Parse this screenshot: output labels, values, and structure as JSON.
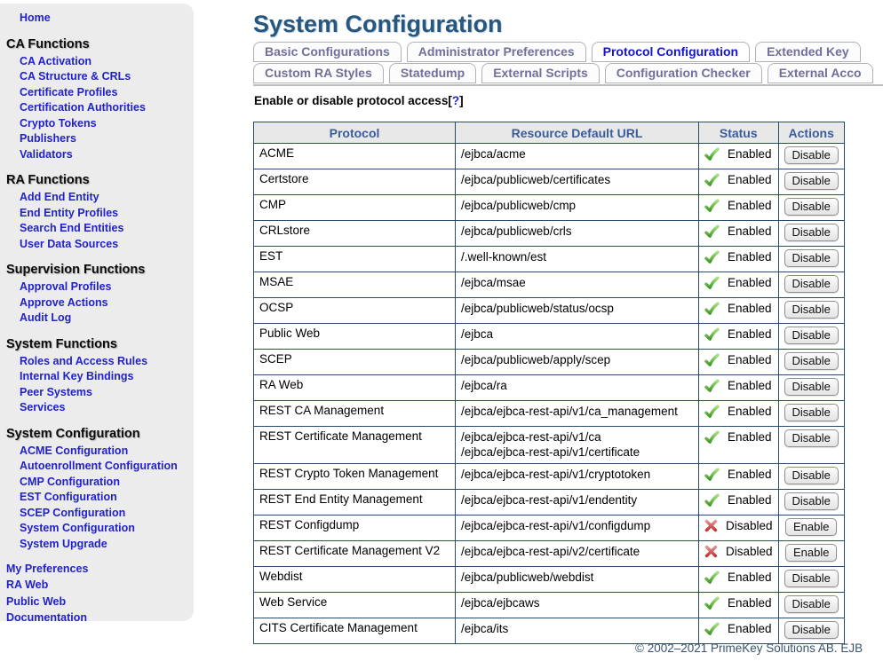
{
  "colors": {
    "link_blue": "#2121ce",
    "title_blue": "#27567f",
    "active_tab_blue": "#1515cd",
    "inactive_tab_gray": "#70709a",
    "table_border": "#2a4a6e",
    "header_bg": "#e8e8e8",
    "sidebar_bg": "#ececec",
    "enabled_green": "#3f9b25",
    "disabled_red": "#c03434"
  },
  "sidebar": {
    "home": {
      "label": "Home"
    },
    "groups": [
      {
        "title": "CA Functions",
        "items": [
          "CA Activation",
          "CA Structure & CRLs",
          "Certificate Profiles",
          "Certification Authorities",
          "Crypto Tokens",
          "Publishers",
          "Validators"
        ]
      },
      {
        "title": "RA Functions",
        "items": [
          "Add End Entity",
          "End Entity Profiles",
          "Search End Entities",
          "User Data Sources"
        ]
      },
      {
        "title": "Supervision Functions",
        "items": [
          "Approval Profiles",
          "Approve Actions",
          "Audit Log"
        ]
      },
      {
        "title": "System Functions",
        "items": [
          "Roles and Access Rules",
          "Internal Key Bindings",
          "Peer Systems",
          "Services"
        ]
      },
      {
        "title": "System Configuration",
        "items": [
          "ACME Configuration",
          "Autoenrollment Configuration",
          "CMP Configuration",
          "EST Configuration",
          "SCEP Configuration",
          "System Configuration",
          "System Upgrade"
        ]
      }
    ],
    "bottom_links": [
      "My Preferences",
      "RA Web",
      "Public Web",
      "Documentation"
    ]
  },
  "header": {
    "title": "System Configuration"
  },
  "tabs": {
    "row1": [
      {
        "label": "Basic Configurations",
        "active": false
      },
      {
        "label": "Administrator Preferences",
        "active": false
      },
      {
        "label": "Protocol Configuration",
        "active": true
      },
      {
        "label": "Extended Key",
        "active": false
      }
    ],
    "row2": [
      {
        "label": "Custom RA Styles",
        "active": false
      },
      {
        "label": "Statedump",
        "active": false
      },
      {
        "label": "External Scripts",
        "active": false
      },
      {
        "label": "Configuration Checker",
        "active": false
      },
      {
        "label": "External Acco",
        "active": false
      }
    ]
  },
  "help": {
    "text": "Enable or disable protocol access",
    "bracket_open": "[",
    "mark": "?",
    "bracket_close": "]"
  },
  "table": {
    "columns": [
      "Protocol",
      "Resource Default URL",
      "Status",
      "Actions"
    ],
    "rows": [
      {
        "protocol": "ACME",
        "urls": [
          "/ejbca/acme"
        ],
        "enabled": true,
        "status": "Enabled",
        "status_icon": "enabled-check-icon",
        "action": "Disable"
      },
      {
        "protocol": "Certstore",
        "urls": [
          "/ejbca/publicweb/certificates"
        ],
        "enabled": true,
        "status": "Enabled",
        "status_icon": "enabled-check-icon",
        "action": "Disable"
      },
      {
        "protocol": "CMP",
        "urls": [
          "/ejbca/publicweb/cmp"
        ],
        "enabled": true,
        "status": "Enabled",
        "status_icon": "enabled-check-icon",
        "action": "Disable"
      },
      {
        "protocol": "CRLstore",
        "urls": [
          "/ejbca/publicweb/crls"
        ],
        "enabled": true,
        "status": "Enabled",
        "status_icon": "enabled-check-icon",
        "action": "Disable"
      },
      {
        "protocol": "EST",
        "urls": [
          "/.well-known/est"
        ],
        "enabled": true,
        "status": "Enabled",
        "status_icon": "enabled-check-icon",
        "action": "Disable"
      },
      {
        "protocol": "MSAE",
        "urls": [
          "/ejbca/msae"
        ],
        "enabled": true,
        "status": "Enabled",
        "status_icon": "enabled-check-icon",
        "action": "Disable"
      },
      {
        "protocol": "OCSP",
        "urls": [
          "/ejbca/publicweb/status/ocsp"
        ],
        "enabled": true,
        "status": "Enabled",
        "status_icon": "enabled-check-icon",
        "action": "Disable"
      },
      {
        "protocol": "Public Web",
        "urls": [
          "/ejbca"
        ],
        "enabled": true,
        "status": "Enabled",
        "status_icon": "enabled-check-icon",
        "action": "Disable"
      },
      {
        "protocol": "SCEP",
        "urls": [
          "/ejbca/publicweb/apply/scep"
        ],
        "enabled": true,
        "status": "Enabled",
        "status_icon": "enabled-check-icon",
        "action": "Disable"
      },
      {
        "protocol": "RA Web",
        "urls": [
          "/ejbca/ra"
        ],
        "enabled": true,
        "status": "Enabled",
        "status_icon": "enabled-check-icon",
        "action": "Disable"
      },
      {
        "protocol": "REST CA Management",
        "urls": [
          "/ejbca/ejbca-rest-api/v1/ca_management"
        ],
        "enabled": true,
        "status": "Enabled",
        "status_icon": "enabled-check-icon",
        "action": "Disable"
      },
      {
        "protocol": "REST Certificate Management",
        "urls": [
          "/ejbca/ejbca-rest-api/v1/ca",
          "/ejbca/ejbca-rest-api/v1/certificate"
        ],
        "enabled": true,
        "status": "Enabled",
        "status_icon": "enabled-check-icon",
        "action": "Disable"
      },
      {
        "protocol": "REST Crypto Token Management",
        "urls": [
          "/ejbca/ejbca-rest-api/v1/cryptotoken"
        ],
        "enabled": true,
        "status": "Enabled",
        "status_icon": "enabled-check-icon",
        "action": "Disable"
      },
      {
        "protocol": "REST End Entity Management",
        "urls": [
          "/ejbca/ejbca-rest-api/v1/endentity"
        ],
        "enabled": true,
        "status": "Enabled",
        "status_icon": "enabled-check-icon",
        "action": "Disable"
      },
      {
        "protocol": "REST Configdump",
        "urls": [
          "/ejbca/ejbca-rest-api/v1/configdump"
        ],
        "enabled": false,
        "status": "Disabled",
        "status_icon": "disabled-cross-icon",
        "action": "Enable"
      },
      {
        "protocol": "REST Certificate Management V2",
        "urls": [
          "/ejbca/ejbca-rest-api/v2/certificate"
        ],
        "enabled": false,
        "status": "Disabled",
        "status_icon": "disabled-cross-icon",
        "action": "Enable"
      },
      {
        "protocol": "Webdist",
        "urls": [
          "/ejbca/publicweb/webdist"
        ],
        "enabled": true,
        "status": "Enabled",
        "status_icon": "enabled-check-icon",
        "action": "Disable"
      },
      {
        "protocol": "Web Service",
        "urls": [
          "/ejbca/ejbcaws"
        ],
        "enabled": true,
        "status": "Enabled",
        "status_icon": "enabled-check-icon",
        "action": "Disable"
      },
      {
        "protocol": "CITS Certificate Management",
        "urls": [
          "/ejbca/its"
        ],
        "enabled": true,
        "status": "Enabled",
        "status_icon": "enabled-check-icon",
        "action": "Disable"
      }
    ]
  },
  "footer": {
    "copyright": "© 2002–2021 PrimeKey Solutions AB. EJB"
  }
}
